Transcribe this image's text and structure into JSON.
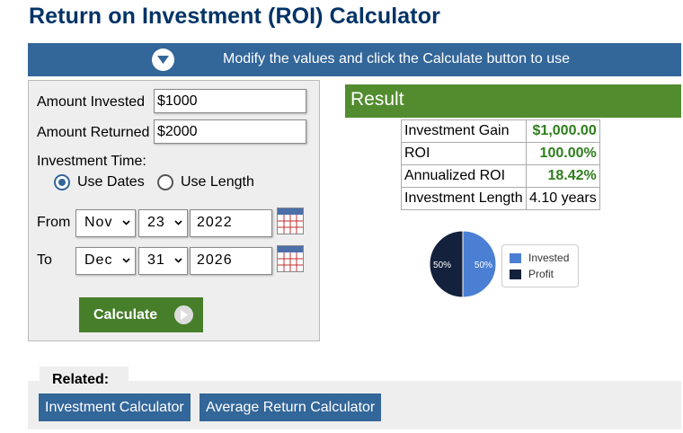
{
  "page": {
    "title": "Return on Investment (ROI) Calculator"
  },
  "banner": {
    "text": "Modify the values and click the Calculate button to use",
    "toggle_icon": "chevron-down-icon"
  },
  "form": {
    "amount_invested_label": "Amount Invested",
    "amount_invested_value": "$1000",
    "amount_returned_label": "Amount Returned",
    "amount_returned_value": "$2000",
    "investment_time_label": "Investment Time:",
    "radio_dates_label": "Use Dates",
    "radio_length_label": "Use Length",
    "selected_mode": "Use Dates",
    "from_label": "From",
    "from_month": "Nov",
    "from_day": "23",
    "from_year": "2022",
    "to_label": "To",
    "to_month": "Dec",
    "to_day": "31",
    "to_year": "2026",
    "calculate_label": "Calculate"
  },
  "result": {
    "header": "Result",
    "rows": [
      {
        "label": "Investment Gain",
        "value": "$1,000.00"
      },
      {
        "label": "ROI",
        "value": "100.00%"
      },
      {
        "label": "Annualized ROI",
        "value": "18.42%"
      },
      {
        "label": "Investment Length",
        "value": "4.10 years"
      }
    ]
  },
  "chart_data": {
    "type": "pie",
    "categories": [
      "Invested",
      "Profit"
    ],
    "values": [
      50,
      50
    ],
    "labels": [
      "50%",
      "50%"
    ],
    "colors": [
      "#4a7fd4",
      "#13213d"
    ],
    "legend": "right"
  },
  "related": {
    "label": "Related:",
    "links": [
      "Investment Calculator",
      "Average Return Calculator"
    ]
  }
}
